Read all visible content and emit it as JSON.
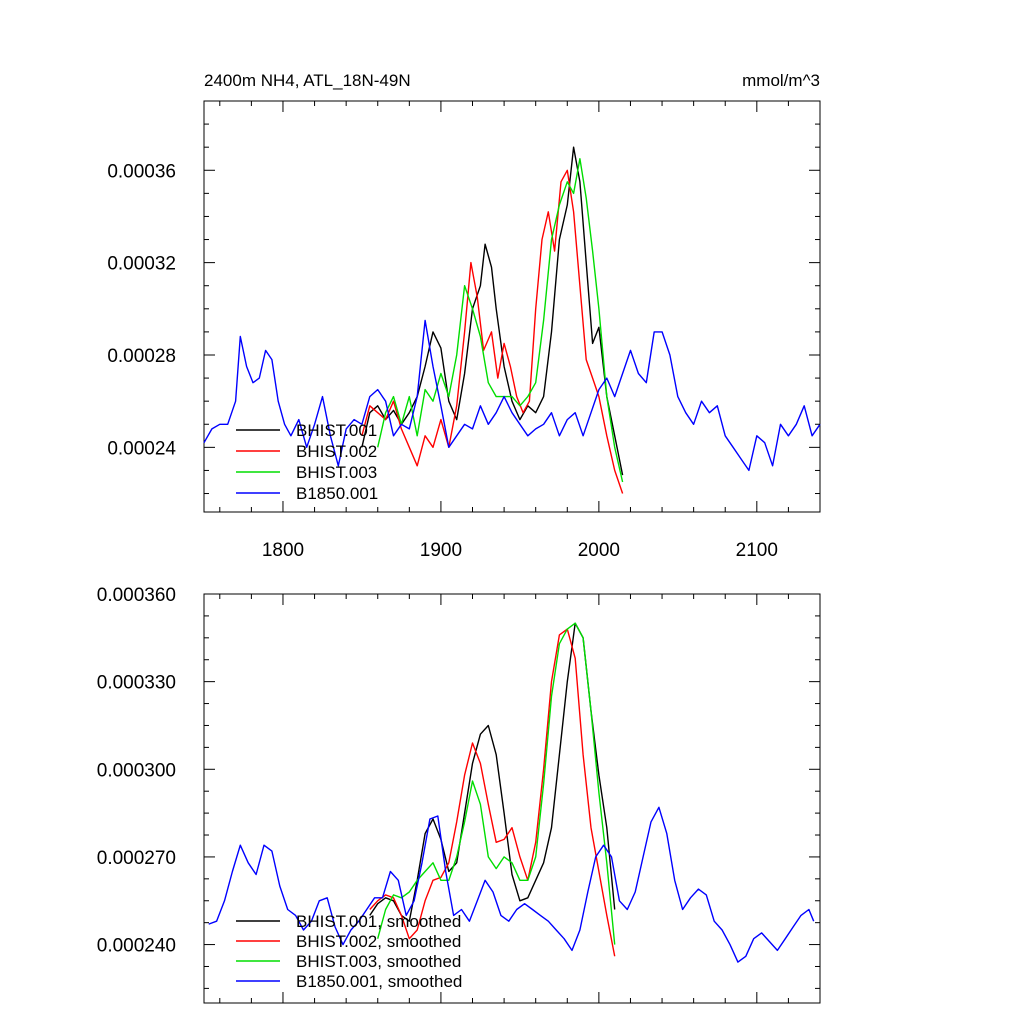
{
  "chart_data": [
    {
      "type": "line",
      "title": "2400m NH4, ATL_18N-49N",
      "units": "mmol/m^3",
      "xlabel": "",
      "ylabel": "",
      "xlim": [
        1750,
        2140
      ],
      "ylim": [
        0.000212,
        0.00039
      ],
      "x_ticks": [
        1800,
        1900,
        2000,
        2100
      ],
      "x_tick_labels": [
        "1800",
        "1900",
        "2000",
        "2100"
      ],
      "y_ticks": [
        0.00024,
        0.00028,
        0.00032,
        0.00036
      ],
      "y_tick_labels": [
        "0.00024",
        "0.00028",
        "0.00032",
        "0.00036"
      ],
      "grid": false,
      "legend_position": "bottom-left",
      "colors": {
        "BHIST.001": "#000000",
        "BHIST.002": "#ff0000",
        "BHIST.003": "#00dd00",
        "B1850.001": "#0000ff"
      },
      "series": [
        {
          "name": "BHIST.001",
          "x": [
            1850,
            1855,
            1860,
            1865,
            1870,
            1875,
            1880,
            1885,
            1890,
            1895,
            1900,
            1905,
            1910,
            1915,
            1920,
            1925,
            1928,
            1932,
            1935,
            1940,
            1945,
            1950,
            1955,
            1960,
            1965,
            1970,
            1975,
            1980,
            1984,
            1988,
            1992,
            1996,
            2000,
            2005,
            2010,
            2015
          ],
          "y": [
            0.00024,
            0.000255,
            0.000258,
            0.000252,
            0.000256,
            0.00025,
            0.000255,
            0.000262,
            0.000275,
            0.00029,
            0.000283,
            0.00026,
            0.000252,
            0.000272,
            0.0003,
            0.00031,
            0.000328,
            0.000318,
            0.0003,
            0.000275,
            0.00026,
            0.000252,
            0.000258,
            0.000255,
            0.000262,
            0.00029,
            0.00033,
            0.000345,
            0.00037,
            0.000355,
            0.00032,
            0.000285,
            0.000292,
            0.000262,
            0.000245,
            0.000228
          ]
        },
        {
          "name": "BHIST.002",
          "x": [
            1850,
            1855,
            1860,
            1865,
            1870,
            1875,
            1880,
            1885,
            1890,
            1895,
            1900,
            1905,
            1910,
            1915,
            1919,
            1923,
            1927,
            1932,
            1936,
            1940,
            1944,
            1948,
            1952,
            1956,
            1960,
            1964,
            1968,
            1972,
            1976,
            1980,
            1984,
            1988,
            1992,
            1996,
            2000,
            2005,
            2010,
            2015
          ],
          "y": [
            0.000245,
            0.000258,
            0.000255,
            0.000252,
            0.00026,
            0.000248,
            0.00024,
            0.000232,
            0.000245,
            0.00024,
            0.000252,
            0.00024,
            0.000258,
            0.00029,
            0.00032,
            0.000305,
            0.000282,
            0.00029,
            0.00027,
            0.000285,
            0.000275,
            0.000262,
            0.000255,
            0.00026,
            0.0003,
            0.00033,
            0.000342,
            0.000325,
            0.000355,
            0.00036,
            0.000342,
            0.00031,
            0.000278,
            0.00027,
            0.000262,
            0.000245,
            0.00023,
            0.00022
          ]
        },
        {
          "name": "BHIST.003",
          "x": [
            1860,
            1865,
            1870,
            1875,
            1880,
            1885,
            1890,
            1895,
            1900,
            1905,
            1910,
            1915,
            1920,
            1925,
            1930,
            1935,
            1940,
            1945,
            1950,
            1955,
            1960,
            1965,
            1970,
            1975,
            1980,
            1984,
            1988,
            1992,
            1996,
            2000,
            2005,
            2010,
            2015
          ],
          "y": [
            0.00024,
            0.000255,
            0.000262,
            0.00025,
            0.000262,
            0.000245,
            0.000265,
            0.00026,
            0.000272,
            0.000262,
            0.00028,
            0.00031,
            0.0003,
            0.000288,
            0.000268,
            0.000262,
            0.000262,
            0.000262,
            0.000258,
            0.000262,
            0.000268,
            0.000295,
            0.00033,
            0.000345,
            0.000355,
            0.00035,
            0.000365,
            0.000348,
            0.000325,
            0.0003,
            0.000262,
            0.00024,
            0.000225
          ]
        },
        {
          "name": "B1850.001",
          "x": [
            1750,
            1755,
            1760,
            1765,
            1770,
            1773,
            1777,
            1781,
            1785,
            1789,
            1793,
            1797,
            1801,
            1805,
            1810,
            1815,
            1820,
            1825,
            1830,
            1835,
            1840,
            1845,
            1850,
            1855,
            1860,
            1865,
            1870,
            1875,
            1880,
            1885,
            1890,
            1895,
            1900,
            1905,
            1910,
            1915,
            1920,
            1925,
            1930,
            1935,
            1940,
            1945,
            1950,
            1955,
            1960,
            1965,
            1970,
            1975,
            1980,
            1985,
            1990,
            1995,
            2000,
            2005,
            2010,
            2015,
            2020,
            2025,
            2030,
            2035,
            2040,
            2045,
            2050,
            2055,
            2060,
            2065,
            2070,
            2075,
            2080,
            2085,
            2090,
            2095,
            2100,
            2105,
            2110,
            2115,
            2120,
            2125,
            2130,
            2135,
            2140
          ],
          "y": [
            0.000242,
            0.000248,
            0.00025,
            0.00025,
            0.00026,
            0.000288,
            0.000275,
            0.000268,
            0.00027,
            0.000282,
            0.000278,
            0.00026,
            0.00025,
            0.000245,
            0.000252,
            0.00024,
            0.00025,
            0.000262,
            0.000245,
            0.000232,
            0.000248,
            0.000252,
            0.00025,
            0.000262,
            0.000265,
            0.00026,
            0.000245,
            0.00025,
            0.000248,
            0.000262,
            0.000295,
            0.000275,
            0.000258,
            0.00024,
            0.000245,
            0.00025,
            0.000248,
            0.000258,
            0.00025,
            0.000255,
            0.000262,
            0.000255,
            0.00025,
            0.000245,
            0.000248,
            0.00025,
            0.000255,
            0.000245,
            0.000252,
            0.000255,
            0.000245,
            0.000255,
            0.000265,
            0.00027,
            0.000262,
            0.000272,
            0.000282,
            0.000272,
            0.000268,
            0.00029,
            0.00029,
            0.00028,
            0.000262,
            0.000255,
            0.00025,
            0.00026,
            0.000255,
            0.000258,
            0.000245,
            0.00024,
            0.000235,
            0.00023,
            0.000245,
            0.000242,
            0.000232,
            0.00025,
            0.000245,
            0.00025,
            0.000258,
            0.000245,
            0.00025
          ]
        }
      ]
    },
    {
      "type": "line",
      "title": "",
      "xlabel": "",
      "ylabel": "",
      "xlim": [
        1750,
        2140
      ],
      "ylim": [
        0.00022,
        0.00036
      ],
      "x_ticks": [
        1800,
        1900,
        2000,
        2100
      ],
      "x_tick_labels": [],
      "y_ticks": [
        0.00024,
        0.00027,
        0.0003,
        0.00033,
        0.00036
      ],
      "y_tick_labels": [
        "0.000240",
        "0.000270",
        "0.000300",
        "0.000330",
        "0.000360"
      ],
      "grid": false,
      "legend_position": "bottom-left",
      "colors": {
        "BHIST.001, smoothed": "#000000",
        "BHIST.002, smoothed": "#ff0000",
        "BHIST.003, smoothed": "#00dd00",
        "B1850.001, smoothed": "#0000ff"
      },
      "series": [
        {
          "name": "BHIST.001, smoothed",
          "x": [
            1855,
            1860,
            1865,
            1870,
            1875,
            1880,
            1885,
            1890,
            1895,
            1900,
            1905,
            1910,
            1915,
            1920,
            1925,
            1930,
            1935,
            1940,
            1945,
            1950,
            1955,
            1960,
            1965,
            1970,
            1975,
            1980,
            1985,
            1990,
            1995,
            2000,
            2005,
            2010
          ],
          "y": [
            0.00025,
            0.000254,
            0.000256,
            0.000255,
            0.00025,
            0.000248,
            0.000262,
            0.000278,
            0.000283,
            0.000276,
            0.000265,
            0.000268,
            0.000285,
            0.000302,
            0.000312,
            0.000315,
            0.000305,
            0.000285,
            0.000264,
            0.000255,
            0.000256,
            0.000262,
            0.000268,
            0.00028,
            0.000305,
            0.00033,
            0.00035,
            0.000345,
            0.00032,
            0.000298,
            0.00028,
            0.000252
          ]
        },
        {
          "name": "BHIST.002, smoothed",
          "x": [
            1855,
            1860,
            1865,
            1870,
            1875,
            1880,
            1885,
            1890,
            1895,
            1900,
            1905,
            1910,
            1915,
            1920,
            1925,
            1930,
            1935,
            1940,
            1945,
            1950,
            1955,
            1960,
            1965,
            1970,
            1975,
            1980,
            1985,
            1990,
            1995,
            2000,
            2005,
            2010
          ],
          "y": [
            0.000252,
            0.000255,
            0.000257,
            0.000256,
            0.00025,
            0.000242,
            0.000245,
            0.000255,
            0.000262,
            0.000263,
            0.000268,
            0.000282,
            0.000298,
            0.000309,
            0.000302,
            0.000288,
            0.000275,
            0.000276,
            0.00028,
            0.00027,
            0.000262,
            0.000275,
            0.0003,
            0.00033,
            0.000346,
            0.000348,
            0.000338,
            0.000305,
            0.00028,
            0.000265,
            0.00025,
            0.000236
          ]
        },
        {
          "name": "BHIST.003, smoothed",
          "x": [
            1860,
            1865,
            1870,
            1875,
            1880,
            1885,
            1890,
            1895,
            1900,
            1905,
            1910,
            1915,
            1920,
            1925,
            1930,
            1935,
            1940,
            1945,
            1950,
            1955,
            1960,
            1965,
            1970,
            1975,
            1980,
            1985,
            1990,
            1995,
            2000,
            2005,
            2010
          ],
          "y": [
            0.000242,
            0.000252,
            0.000257,
            0.000256,
            0.000258,
            0.000262,
            0.000265,
            0.000268,
            0.000262,
            0.000262,
            0.00027,
            0.000282,
            0.000296,
            0.000288,
            0.00027,
            0.000266,
            0.00027,
            0.000268,
            0.000262,
            0.000262,
            0.00027,
            0.000295,
            0.000325,
            0.000343,
            0.000348,
            0.00035,
            0.000345,
            0.00032,
            0.000292,
            0.000268,
            0.00024
          ]
        },
        {
          "name": "B1850.001, smoothed",
          "x": [
            1753,
            1758,
            1763,
            1768,
            1773,
            1778,
            1783,
            1788,
            1793,
            1798,
            1803,
            1808,
            1813,
            1818,
            1823,
            1828,
            1833,
            1838,
            1843,
            1848,
            1853,
            1858,
            1863,
            1868,
            1873,
            1878,
            1883,
            1888,
            1893,
            1898,
            1903,
            1908,
            1913,
            1918,
            1923,
            1928,
            1933,
            1938,
            1943,
            1948,
            1953,
            1958,
            1963,
            1968,
            1973,
            1978,
            1983,
            1988,
            1993,
            1998,
            2003,
            2008,
            2013,
            2018,
            2023,
            2028,
            2033,
            2038,
            2043,
            2048,
            2053,
            2058,
            2063,
            2068,
            2073,
            2078,
            2083,
            2088,
            2093,
            2098,
            2103,
            2108,
            2113,
            2118,
            2123,
            2128,
            2133,
            2136
          ],
          "y": [
            0.000247,
            0.000248,
            0.000255,
            0.000265,
            0.000274,
            0.000268,
            0.000264,
            0.000274,
            0.000272,
            0.00026,
            0.000252,
            0.00025,
            0.000245,
            0.000248,
            0.000255,
            0.000256,
            0.000246,
            0.00024,
            0.000245,
            0.000248,
            0.000252,
            0.000256,
            0.000256,
            0.000265,
            0.000262,
            0.00025,
            0.000255,
            0.000268,
            0.000283,
            0.000284,
            0.000265,
            0.00025,
            0.000252,
            0.000248,
            0.000255,
            0.000262,
            0.000258,
            0.00025,
            0.000248,
            0.000252,
            0.000254,
            0.000252,
            0.00025,
            0.000248,
            0.000245,
            0.000242,
            0.000238,
            0.000245,
            0.000258,
            0.00027,
            0.000274,
            0.00027,
            0.000255,
            0.000252,
            0.000258,
            0.00027,
            0.000282,
            0.000287,
            0.000278,
            0.000262,
            0.000252,
            0.000256,
            0.000259,
            0.000257,
            0.000248,
            0.000245,
            0.00024,
            0.000234,
            0.000236,
            0.000242,
            0.000244,
            0.000241,
            0.000238,
            0.000242,
            0.000246,
            0.00025,
            0.000252,
            0.000248
          ]
        }
      ]
    }
  ]
}
